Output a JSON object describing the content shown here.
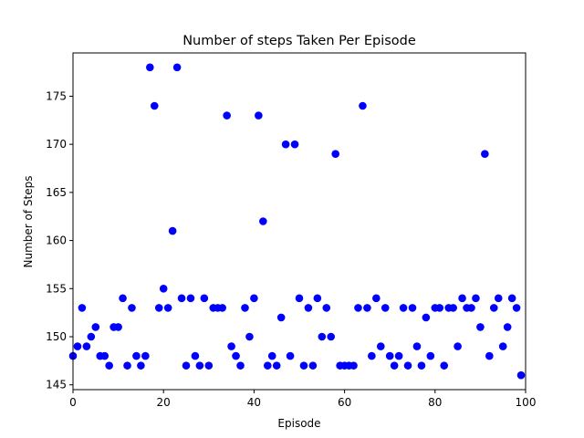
{
  "chart_data": {
    "type": "scatter",
    "title": "Number of steps Taken Per Episode",
    "xlabel": "Episode",
    "ylabel": "Number of Steps",
    "xlim": [
      0,
      100
    ],
    "ylim": [
      144.5,
      179.5
    ],
    "xticks": [
      0,
      20,
      40,
      60,
      80,
      100
    ],
    "yticks": [
      145,
      150,
      155,
      160,
      165,
      170,
      175
    ],
    "grid": false,
    "marker_color": "#0000ff",
    "x": [
      0,
      1,
      2,
      3,
      4,
      5,
      6,
      7,
      8,
      9,
      10,
      11,
      12,
      13,
      14,
      15,
      16,
      17,
      18,
      19,
      20,
      21,
      22,
      23,
      24,
      25,
      26,
      27,
      28,
      29,
      30,
      31,
      32,
      33,
      34,
      35,
      36,
      37,
      38,
      39,
      40,
      41,
      42,
      43,
      44,
      45,
      46,
      47,
      48,
      49,
      50,
      51,
      52,
      53,
      54,
      55,
      56,
      57,
      58,
      59,
      60,
      61,
      62,
      63,
      64,
      65,
      66,
      67,
      68,
      69,
      70,
      71,
      72,
      73,
      74,
      75,
      76,
      77,
      78,
      79,
      80,
      81,
      82,
      83,
      84,
      85,
      86,
      87,
      88,
      89,
      90,
      91,
      92,
      93,
      94,
      95,
      96,
      97,
      98,
      99
    ],
    "y": [
      148,
      149,
      153,
      149,
      150,
      151,
      148,
      148,
      147,
      151,
      151,
      154,
      147,
      153,
      148,
      147,
      148,
      178,
      174,
      153,
      155,
      153,
      161,
      178,
      154,
      147,
      154,
      148,
      147,
      154,
      147,
      153,
      153,
      153,
      173,
      149,
      148,
      147,
      153,
      150,
      154,
      173,
      162,
      147,
      148,
      147,
      152,
      170,
      148,
      170,
      154,
      147,
      153,
      147,
      154,
      150,
      153,
      150,
      169,
      147,
      147,
      147,
      147,
      153,
      174,
      153,
      148,
      154,
      149,
      153,
      148,
      147,
      148,
      153,
      147,
      153,
      149,
      147,
      152,
      148,
      153,
      153,
      147,
      153,
      153,
      149,
      154,
      153,
      153,
      154,
      151,
      169,
      148,
      153,
      154,
      149,
      151,
      154,
      153,
      146
    ]
  }
}
